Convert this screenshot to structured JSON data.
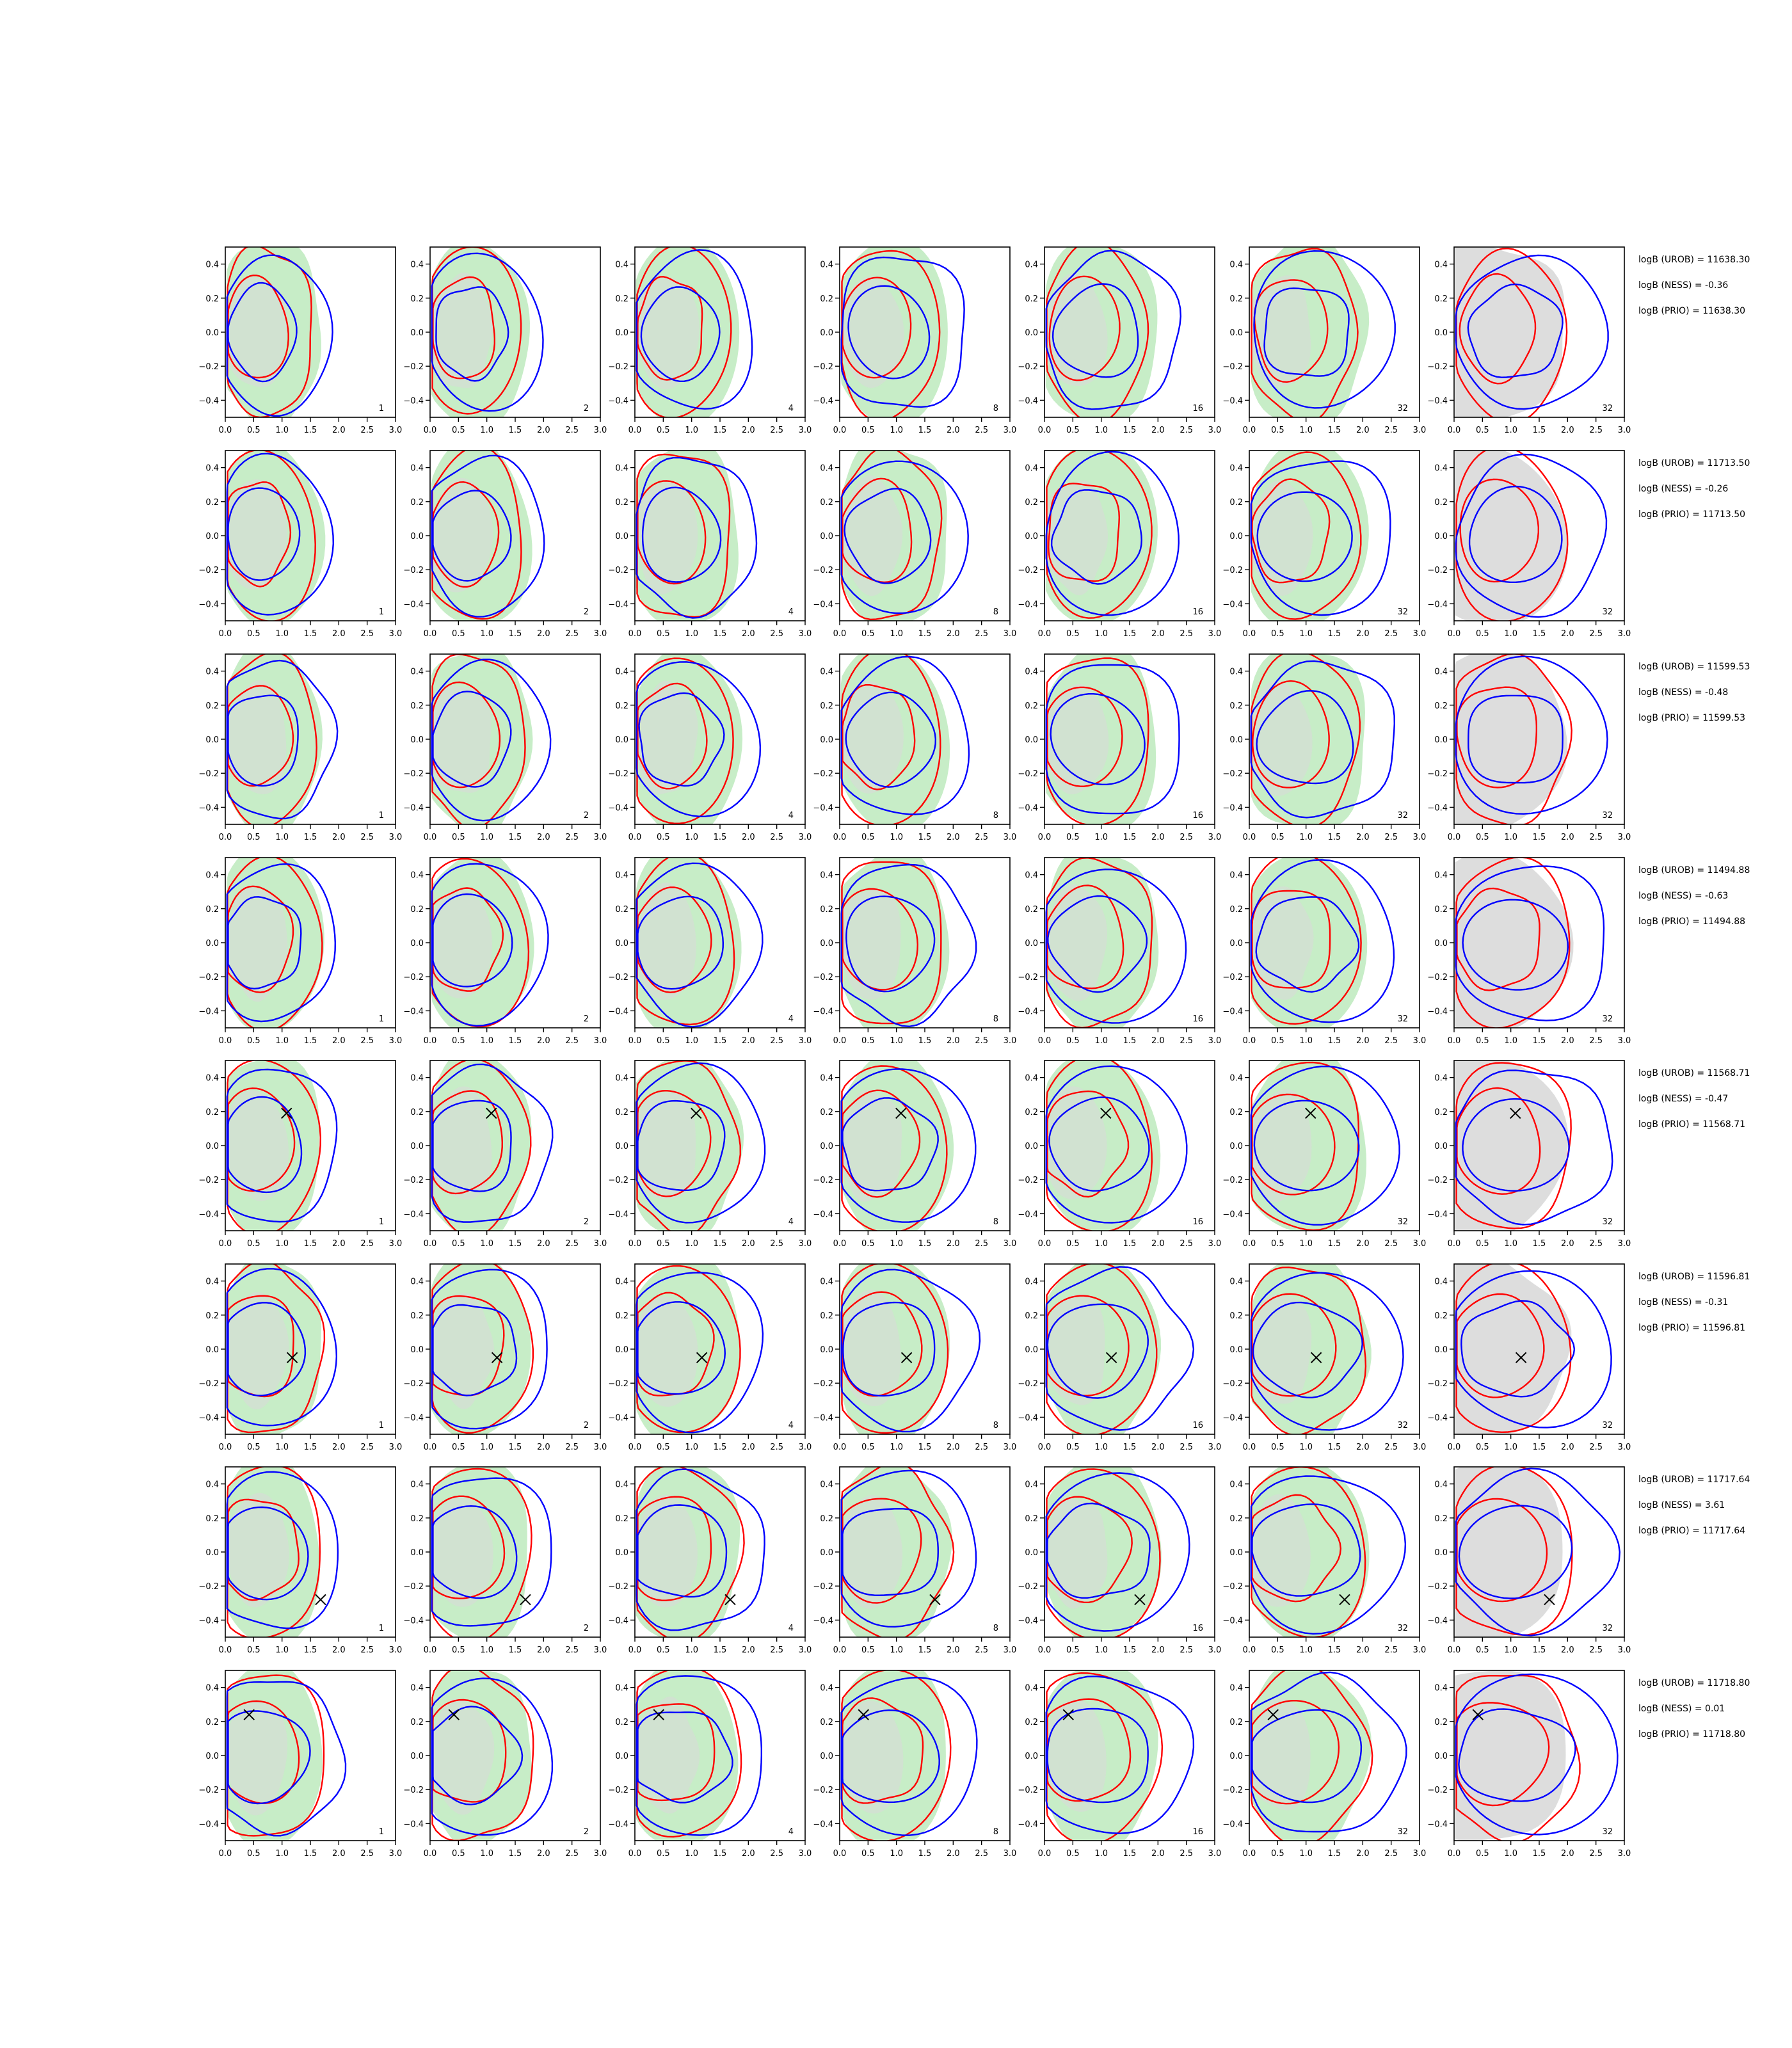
{
  "chart_data": {
    "type": "contour-grid",
    "rows": 8,
    "cols": 7,
    "xlim": [
      0.0,
      3.0
    ],
    "ylim": [
      -0.5,
      0.5
    ],
    "x_ticks": [
      "0.0",
      "0.5",
      "1.0",
      "1.5",
      "2.0",
      "2.5",
      "3.0"
    ],
    "y_ticks": [
      "0.4",
      "0.2",
      "0.0",
      "−0.2",
      "−0.4"
    ],
    "panel_labels": [
      "1",
      "2",
      "4",
      "8",
      "16",
      "32",
      "32"
    ],
    "colors": {
      "green_fill": "#c7edc7",
      "gray_fill": "#d9d9d9",
      "red": "#ff0000",
      "blue": "#0000ff",
      "marker": "#000000"
    },
    "rows_data": [
      {
        "logB_UROB": "logB (UROB) = 11638.30",
        "logB_NESS": "logB (NESS) = -0.36",
        "logB_PRIO": "logB (PRIO) = 11638.30",
        "marker": null
      },
      {
        "logB_UROB": "logB (UROB) = 11713.50",
        "logB_NESS": "logB (NESS) = -0.26",
        "logB_PRIO": "logB (PRIO) = 11713.50",
        "marker": null
      },
      {
        "logB_UROB": "logB (UROB) = 11599.53",
        "logB_NESS": "logB (NESS) = -0.48",
        "logB_PRIO": "logB (PRIO) = 11599.53",
        "marker": null
      },
      {
        "logB_UROB": "logB (UROB) = 11494.88",
        "logB_NESS": "logB (NESS) = -0.63",
        "logB_PRIO": "logB (PRIO) = 11494.88",
        "marker": null
      },
      {
        "logB_UROB": "logB (UROB) = 11568.71",
        "logB_NESS": "logB (NESS) = -0.47",
        "logB_PRIO": "logB (PRIO) = 11568.71",
        "marker": [
          1.08,
          0.19
        ]
      },
      {
        "logB_UROB": "logB (UROB) = 11596.81",
        "logB_NESS": "logB (NESS) = -0.31",
        "logB_PRIO": "logB (PRIO) = 11596.81",
        "marker": [
          1.18,
          -0.05
        ]
      },
      {
        "logB_UROB": "logB (UROB) = 11717.64",
        "logB_NESS": "logB (NESS) = 3.61",
        "logB_PRIO": "logB (PRIO) = 11717.64",
        "marker": [
          1.68,
          -0.28
        ]
      },
      {
        "logB_UROB": "logB (UROB) = 11718.80",
        "logB_NESS": "logB (NESS) = 0.01",
        "logB_PRIO": "logB (PRIO) = 11718.80",
        "marker": [
          0.42,
          0.24
        ]
      }
    ]
  }
}
